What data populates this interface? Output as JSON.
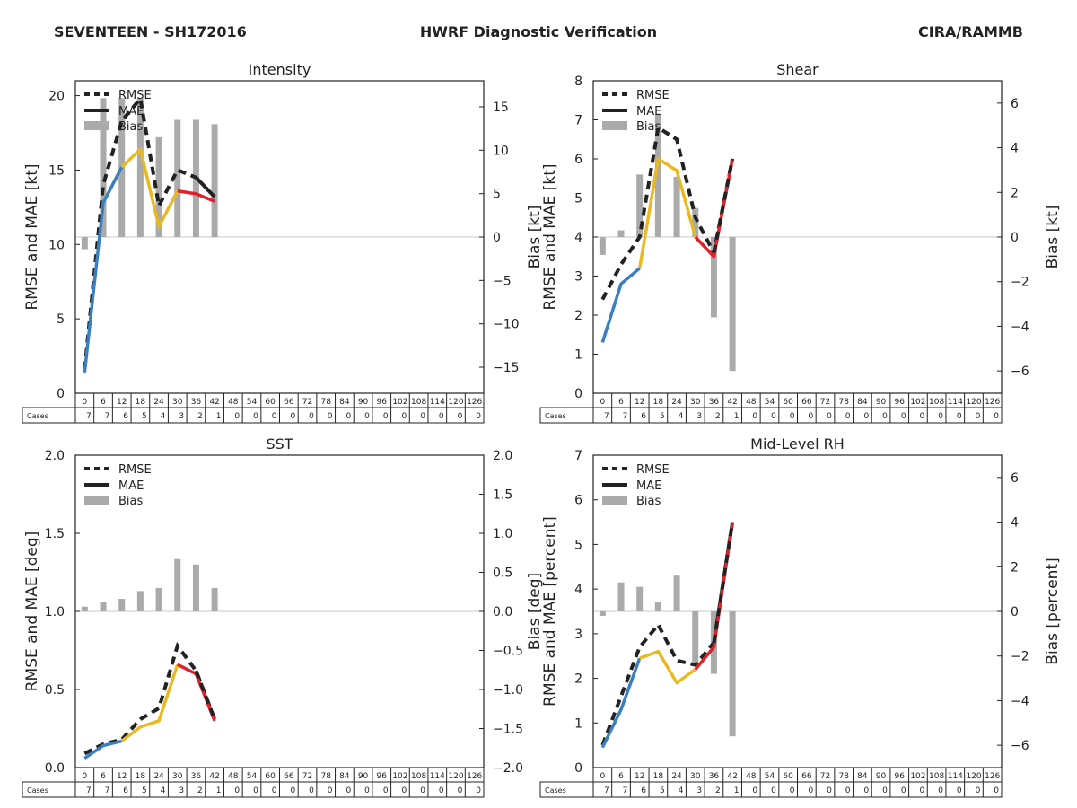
{
  "header": {
    "storm": "SEVENTEEN - SH172016",
    "title": "HWRF Diagnostic Verification",
    "source": "CIRA/RAMMB"
  },
  "colors": {
    "rmse": "#222222",
    "bias": "#aaaaaa",
    "segments": [
      "#3a7fbf",
      "#e8b923",
      "#e0202a"
    ]
  },
  "table": {
    "rowlabel": "Cases",
    "hours": [
      "0",
      "6",
      "12",
      "18",
      "24",
      "30",
      "36",
      "42",
      "48",
      "54",
      "60",
      "66",
      "72",
      "78",
      "84",
      "90",
      "96",
      "102",
      "108",
      "114",
      "120",
      "126"
    ],
    "cases": [
      "7",
      "7",
      "6",
      "5",
      "4",
      "3",
      "2",
      "1",
      "0",
      "0",
      "0",
      "0",
      "0",
      "0",
      "0",
      "0",
      "0",
      "0",
      "0",
      "0",
      "0",
      "0"
    ]
  },
  "chart_data": [
    {
      "type": "line",
      "title": "Intensity",
      "ylabel": "RMSE and MAE [kt]",
      "ylabel2": "Bias [kt]",
      "ylim": [
        0,
        21
      ],
      "yticks": [
        0,
        5,
        10,
        15,
        20
      ],
      "ytick_labels": [
        "0",
        "5",
        "10",
        "15",
        "20"
      ],
      "y2lim": [
        -18,
        18
      ],
      "y2ticks": [
        -15,
        -10,
        -5,
        0,
        5,
        10,
        15
      ],
      "y2tick_labels": [
        "−15",
        "−10",
        "−5",
        "0",
        "5",
        "10",
        "15"
      ],
      "legend": [
        "RMSE",
        "MAE",
        "Bias"
      ],
      "legend_position": "upper-left",
      "x": [
        0,
        6,
        12,
        18,
        24,
        30,
        36,
        42
      ],
      "series": [
        {
          "name": "RMSE",
          "values": [
            1.6,
            14.0,
            18.3,
            19.8,
            12.6,
            15.0,
            14.5,
            13.2
          ]
        },
        {
          "name": "MAE",
          "values": [
            1.4,
            12.8,
            15.2,
            16.4,
            11.2,
            13.6,
            13.4,
            12.9
          ]
        },
        {
          "name": "Bias",
          "values": [
            -1.4,
            16.0,
            16.0,
            16.0,
            11.5,
            13.5,
            13.5,
            13.0
          ]
        }
      ]
    },
    {
      "type": "line",
      "title": "Shear",
      "ylabel": "RMSE and MAE [kt]",
      "ylabel2": "Bias [kt]",
      "ylim": [
        0,
        8
      ],
      "yticks": [
        0,
        1,
        2,
        3,
        4,
        5,
        6,
        7,
        8
      ],
      "ytick_labels": [
        "0",
        "1",
        "2",
        "3",
        "4",
        "5",
        "6",
        "7",
        "8"
      ],
      "y2lim": [
        -7,
        7
      ],
      "y2ticks": [
        -6,
        -4,
        -2,
        0,
        2,
        4,
        6
      ],
      "y2tick_labels": [
        "−6",
        "−4",
        "−2",
        "0",
        "2",
        "4",
        "6"
      ],
      "legend": [
        "RMSE",
        "MAE",
        "Bias"
      ],
      "legend_position": "upper-left",
      "x": [
        0,
        6,
        12,
        18,
        24,
        30,
        36,
        42
      ],
      "series": [
        {
          "name": "RMSE",
          "values": [
            2.4,
            3.3,
            4.0,
            6.8,
            6.5,
            4.5,
            3.6,
            6.0
          ]
        },
        {
          "name": "MAE",
          "values": [
            1.3,
            2.8,
            3.2,
            6.0,
            5.7,
            4.0,
            3.5,
            6.0
          ]
        },
        {
          "name": "Bias",
          "values": [
            -0.8,
            0.3,
            2.8,
            5.5,
            2.7,
            1.3,
            -3.6,
            -6.0
          ]
        }
      ]
    },
    {
      "type": "line",
      "title": "SST",
      "ylabel": "RMSE and MAE [deg]",
      "ylabel2": "Bias [deg]",
      "ylim": [
        0,
        2
      ],
      "yticks": [
        0,
        0.5,
        1,
        1.5,
        2
      ],
      "ytick_labels": [
        "0.0",
        "0.5",
        "1.0",
        "1.5",
        "2.0"
      ],
      "y2lim": [
        -2,
        2
      ],
      "y2ticks": [
        -2,
        -1.5,
        -1,
        -0.5,
        0,
        0.5,
        1,
        1.5,
        2
      ],
      "y2tick_labels": [
        "−2.0",
        "−1.5",
        "−1.0",
        "−0.5",
        "0.0",
        "0.5",
        "1.0",
        "1.5",
        "2.0"
      ],
      "legend": [
        "RMSE",
        "MAE",
        "Bias"
      ],
      "legend_position": "upper-left",
      "x": [
        0,
        6,
        12,
        18,
        24,
        30,
        36,
        42
      ],
      "series": [
        {
          "name": "RMSE",
          "values": [
            0.09,
            0.15,
            0.18,
            0.31,
            0.38,
            0.78,
            0.62,
            0.31
          ]
        },
        {
          "name": "MAE",
          "values": [
            0.06,
            0.14,
            0.17,
            0.26,
            0.3,
            0.66,
            0.6,
            0.3
          ]
        },
        {
          "name": "Bias",
          "values": [
            0.06,
            0.12,
            0.16,
            0.26,
            0.3,
            0.67,
            0.6,
            0.3
          ]
        }
      ]
    },
    {
      "type": "line",
      "title": "Mid-Level RH",
      "ylabel": "RMSE and MAE [percent]",
      "ylabel2": "Bias [percent]",
      "ylim": [
        0,
        7
      ],
      "yticks": [
        0,
        1,
        2,
        3,
        4,
        5,
        6,
        7
      ],
      "ytick_labels": [
        "0",
        "1",
        "2",
        "3",
        "4",
        "5",
        "6",
        "7"
      ],
      "y2lim": [
        -7,
        7
      ],
      "y2ticks": [
        -6,
        -4,
        -2,
        0,
        2,
        4,
        6
      ],
      "y2tick_labels": [
        "−6",
        "−4",
        "−2",
        "0",
        "2",
        "4",
        "6"
      ],
      "legend": [
        "RMSE",
        "MAE",
        "Bias"
      ],
      "legend_position": "upper-left",
      "x": [
        0,
        6,
        12,
        18,
        24,
        30,
        36,
        42
      ],
      "series": [
        {
          "name": "RMSE",
          "values": [
            0.5,
            1.6,
            2.7,
            3.2,
            2.4,
            2.3,
            2.8,
            5.5
          ]
        },
        {
          "name": "MAE",
          "values": [
            0.45,
            1.3,
            2.45,
            2.6,
            1.9,
            2.2,
            2.7,
            5.5
          ]
        },
        {
          "name": "Bias",
          "values": [
            -0.2,
            1.3,
            1.1,
            0.4,
            1.6,
            -2.3,
            -2.8,
            -5.6
          ]
        }
      ]
    }
  ]
}
